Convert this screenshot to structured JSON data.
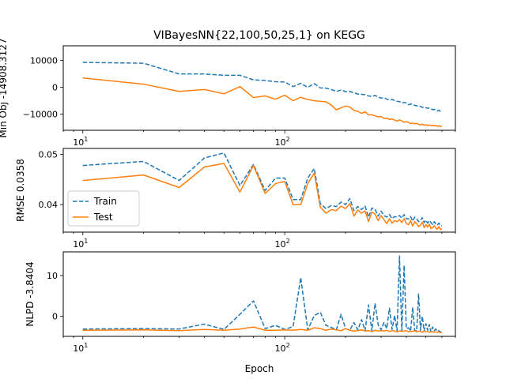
{
  "chart_data": {
    "type": "line",
    "title": "VIBayesNN{22,100,50,25,1} on KEGG",
    "xlabel": "Epoch",
    "x_scale": "log",
    "xlim": [
      8,
      700
    ],
    "x_ticks": [
      10,
      100
    ],
    "x_tick_labels": [
      {
        "base": "10",
        "exp": "1"
      },
      {
        "base": "10",
        "exp": "2"
      }
    ],
    "legend": {
      "location": "lower-left of middle panel",
      "entries": [
        "Train",
        "Test"
      ]
    },
    "series_colors": {
      "Train": "#1f77b4",
      "Test": "#ff7f0e"
    },
    "series_styles": {
      "Train": "dashed",
      "Test": "solid"
    },
    "panels": [
      {
        "ylabel": "Min Obj -14908.3127",
        "ylim": [
          -16000,
          15500
        ],
        "y_ticks": [
          10000,
          0,
          -10000
        ],
        "y_tick_labels": [
          "10000",
          "0",
          "−10000"
        ],
        "series": [
          {
            "name": "Train",
            "x": [
              10,
              20,
              30,
              40,
              50,
              60,
              70,
              80,
              90,
              100,
              110,
              120,
              130,
              140,
              150,
              160,
              170,
              180,
              190,
              200,
              210,
              220,
              230,
              240,
              250,
              260,
              270,
              280,
              290,
              300,
              310,
              320,
              330,
              340,
              350,
              360,
              370,
              380,
              390,
              400,
              410,
              420,
              430,
              440,
              450,
              460,
              470,
              480,
              490,
              500,
              510,
              520,
              530,
              540,
              550,
              560,
              570,
              580,
              590,
              600
            ],
            "y": [
              9300,
              9000,
              5000,
              5000,
              4500,
              4500,
              2800,
              2600,
              2100,
              2000,
              300,
              1500,
              0,
              1400,
              -200,
              -300,
              -800,
              -1500,
              -1000,
              -1600,
              -1500,
              -2000,
              -2500,
              -2600,
              -2700,
              -3200,
              -3400,
              -3000,
              -3600,
              -4000,
              -3800,
              -4400,
              -4600,
              -4500,
              -4900,
              -5200,
              -5300,
              -5800,
              -5600,
              -5800,
              -6500,
              -6200,
              -6300,
              -6700,
              -6900,
              -6800,
              -7100,
              -7500,
              -7300,
              -7600,
              -7800,
              -7700,
              -8000,
              -8300,
              -8200,
              -8600,
              -8800,
              -8500,
              -9000,
              -9200
            ]
          },
          {
            "name": "Test",
            "x": [
              10,
              20,
              30,
              40,
              50,
              60,
              70,
              80,
              90,
              100,
              110,
              120,
              130,
              140,
              150,
              160,
              170,
              180,
              190,
              200,
              210,
              220,
              230,
              240,
              250,
              260,
              270,
              280,
              290,
              300,
              310,
              320,
              330,
              340,
              350,
              360,
              370,
              380,
              390,
              400,
              410,
              420,
              430,
              440,
              450,
              460,
              470,
              480,
              490,
              500,
              510,
              520,
              530,
              540,
              550,
              560,
              570,
              580,
              590,
              600
            ],
            "y": [
              3500,
              1200,
              -1500,
              -800,
              -2400,
              300,
              -3800,
              -3200,
              -4400,
              -2900,
              -5000,
              -3700,
              -4500,
              -5000,
              -5200,
              -5400,
              -6600,
              -8400,
              -7600,
              -7000,
              -7300,
              -8600,
              -8900,
              -9700,
              -9100,
              -10300,
              -10200,
              -10600,
              -11000,
              -10900,
              -11600,
              -11500,
              -12000,
              -11800,
              -12200,
              -12600,
              -12100,
              -12500,
              -13000,
              -12800,
              -13000,
              -13500,
              -13300,
              -13600,
              -13400,
              -13800,
              -14000,
              -13700,
              -14100,
              -13900,
              -14200,
              -14000,
              -14300,
              -14100,
              -14400,
              -14200,
              -14500,
              -14300,
              -14600,
              -14400
            ]
          }
        ]
      },
      {
        "ylabel": "RMSE 0.0358",
        "ylim": [
          0.0345,
          0.0512
        ],
        "y_ticks": [
          0.05,
          0.04
        ],
        "y_tick_labels": [
          "0.05",
          "0.04"
        ],
        "series": [
          {
            "name": "Train",
            "x": [
              10,
              20,
              30,
              40,
              50,
              60,
              70,
              80,
              90,
              100,
              110,
              120,
              130,
              140,
              150,
              160,
              170,
              180,
              190,
              200,
              210,
              220,
              230,
              240,
              250,
              260,
              270,
              280,
              290,
              300,
              310,
              320,
              330,
              340,
              350,
              360,
              370,
              380,
              390,
              400,
              410,
              420,
              430,
              440,
              450,
              460,
              470,
              480,
              490,
              500,
              510,
              520,
              530,
              540,
              550,
              560,
              570,
              580,
              590,
              600
            ],
            "y": [
              0.0478,
              0.0486,
              0.0448,
              0.0493,
              0.0503,
              0.0438,
              0.048,
              0.0428,
              0.0453,
              0.0453,
              0.041,
              0.041,
              0.0453,
              0.0472,
              0.0402,
              0.0392,
              0.0398,
              0.0396,
              0.0405,
              0.04,
              0.0412,
              0.0388,
              0.0396,
              0.039,
              0.0397,
              0.0375,
              0.0393,
              0.0391,
              0.0377,
              0.0387,
              0.0378,
              0.0375,
              0.038,
              0.0372,
              0.0376,
              0.0375,
              0.0378,
              0.0373,
              0.038,
              0.0372,
              0.0371,
              0.0376,
              0.0367,
              0.0375,
              0.0372,
              0.0366,
              0.0368,
              0.0374,
              0.0364,
              0.0369,
              0.0363,
              0.0368,
              0.0364,
              0.036,
              0.0366,
              0.0361,
              0.0359,
              0.0363,
              0.0358,
              0.0358
            ]
          },
          {
            "name": "Test",
            "x": [
              10,
              20,
              30,
              40,
              50,
              60,
              70,
              80,
              90,
              100,
              110,
              120,
              130,
              140,
              150,
              160,
              170,
              180,
              190,
              200,
              210,
              220,
              230,
              240,
              250,
              260,
              270,
              280,
              290,
              300,
              310,
              320,
              330,
              340,
              350,
              360,
              370,
              380,
              390,
              400,
              410,
              420,
              430,
              440,
              450,
              460,
              470,
              480,
              490,
              500,
              510,
              520,
              530,
              540,
              550,
              560,
              570,
              580,
              590,
              600
            ],
            "y": [
              0.0448,
              0.0459,
              0.0434,
              0.0475,
              0.0482,
              0.0425,
              0.0478,
              0.0422,
              0.0442,
              0.0446,
              0.04,
              0.04,
              0.0442,
              0.0463,
              0.0395,
              0.0383,
              0.039,
              0.0388,
              0.0397,
              0.0392,
              0.0402,
              0.0377,
              0.0389,
              0.0383,
              0.0387,
              0.0366,
              0.0385,
              0.0381,
              0.0368,
              0.0378,
              0.037,
              0.0362,
              0.0372,
              0.0363,
              0.0368,
              0.0366,
              0.037,
              0.0364,
              0.0372,
              0.0362,
              0.036,
              0.0368,
              0.0357,
              0.0366,
              0.0362,
              0.0356,
              0.0359,
              0.0365,
              0.0354,
              0.036,
              0.0355,
              0.0361,
              0.0352,
              0.0354,
              0.0358,
              0.0353,
              0.0351,
              0.0356,
              0.035,
              0.0352
            ]
          }
        ]
      },
      {
        "ylabel": "NLPD -3.8404",
        "ylim": [
          -4.9,
          15.8
        ],
        "y_ticks": [
          10,
          0
        ],
        "y_tick_labels": [
          "10",
          "0"
        ],
        "series": [
          {
            "name": "Train",
            "x": [
              10,
              20,
              30,
              40,
              50,
              60,
              70,
              80,
              90,
              100,
              110,
              120,
              130,
              140,
              150,
              160,
              170,
              180,
              190,
              200,
              210,
              220,
              230,
              240,
              250,
              260,
              270,
              280,
              290,
              300,
              310,
              320,
              330,
              340,
              350,
              360,
              370,
              380,
              390,
              400,
              410,
              420,
              430,
              440,
              450,
              460,
              470,
              480,
              490,
              500,
              510,
              520,
              530,
              540,
              550,
              560,
              570,
              580,
              590,
              600
            ],
            "y": [
              -3.1,
              -3.0,
              -3.1,
              -1.9,
              -3.2,
              0.5,
              3.8,
              -3.0,
              -2.2,
              -3.2,
              -2.5,
              9.5,
              -3.3,
              0.2,
              1.0,
              -2.2,
              -2.7,
              -3.3,
              0.5,
              -3.0,
              -3.4,
              -1.5,
              -3.3,
              -0.8,
              -3.5,
              2.8,
              -3.6,
              3.2,
              -2.0,
              -3.3,
              -1.5,
              -3.0,
              2.0,
              -3.2,
              0.2,
              -3.5,
              14.8,
              -3.6,
              12.5,
              -3.0,
              -2.8,
              -3.6,
              2.2,
              -3.4,
              -3.6,
              5.5,
              -3.4,
              0.0,
              -3.6,
              -1.8,
              -3.4,
              -2.0,
              -3.8,
              -2.6,
              -3.5,
              -3.1,
              -3.7,
              -3.5,
              -3.9,
              -3.7
            ]
          },
          {
            "name": "Test",
            "x": [
              10,
              20,
              30,
              40,
              50,
              60,
              70,
              80,
              90,
              100,
              110,
              120,
              130,
              140,
              150,
              160,
              170,
              180,
              190,
              200,
              210,
              220,
              230,
              240,
              250,
              260,
              270,
              280,
              290,
              300,
              310,
              320,
              330,
              340,
              350,
              360,
              370,
              380,
              390,
              400,
              410,
              420,
              430,
              440,
              450,
              460,
              470,
              480,
              490,
              500,
              510,
              520,
              530,
              540,
              550,
              560,
              570,
              580,
              590,
              600
            ],
            "y": [
              -3.4,
              -3.3,
              -3.5,
              -3.2,
              -3.4,
              -3.1,
              -2.6,
              -3.4,
              -3.4,
              -3.3,
              -3.4,
              -3.2,
              -3.4,
              -2.8,
              -3.0,
              -3.4,
              -3.1,
              -3.3,
              -3.5,
              -3.0,
              -3.4,
              -3.6,
              -3.5,
              -3.3,
              -3.6,
              -3.5,
              -3.7,
              -3.4,
              -3.6,
              -3.5,
              -3.6,
              -3.4,
              -3.7,
              -3.5,
              -3.6,
              -3.8,
              -3.5,
              -3.7,
              -3.6,
              -3.5,
              -3.8,
              -3.6,
              -3.7,
              -3.5,
              -3.8,
              -3.6,
              -3.7,
              -3.9,
              -3.6,
              -3.8,
              -3.7,
              -3.9,
              -3.8,
              -3.7,
              -3.9,
              -3.8,
              -3.9,
              -3.8,
              -4.0,
              -3.9
            ]
          }
        ]
      }
    ]
  }
}
